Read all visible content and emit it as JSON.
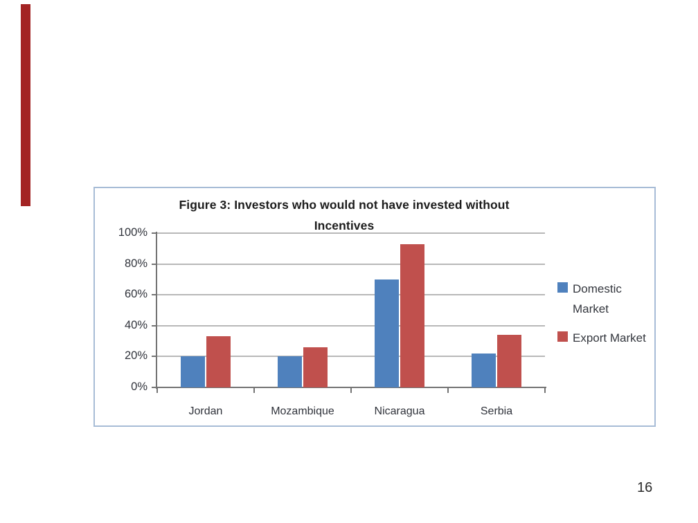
{
  "page": {
    "number": "16"
  },
  "decor": {
    "left_accent_bar_color": "#a32424"
  },
  "chart_data": {
    "type": "bar",
    "title": "Figure 3: Investors who would not have invested without Incentives",
    "title_lines": [
      "Figure 3: Investors who would not have invested without",
      "Incentives"
    ],
    "categories": [
      "Jordan",
      "Mozambique",
      "Nicaragua",
      "Serbia"
    ],
    "series": [
      {
        "name": "Domestic Market",
        "color": "#4f81bd",
        "values": [
          20,
          20,
          70,
          22
        ]
      },
      {
        "name": "Export Market",
        "color": "#c0504d",
        "values": [
          33,
          26,
          93,
          34
        ]
      }
    ],
    "unit": "%",
    "ylim": [
      0,
      100
    ],
    "ytick_step": 20,
    "ytick_labels_top_to_bottom": [
      "100%",
      "80%",
      "60%",
      "40%",
      "20%",
      "0%"
    ],
    "grid": true,
    "legend_position": "right",
    "colors": {
      "frame_border": "#a7bcd6",
      "gridline": "#b8b8b8",
      "axis": "#737373",
      "labels": "#30333b",
      "title": "#1c1c1c"
    }
  }
}
